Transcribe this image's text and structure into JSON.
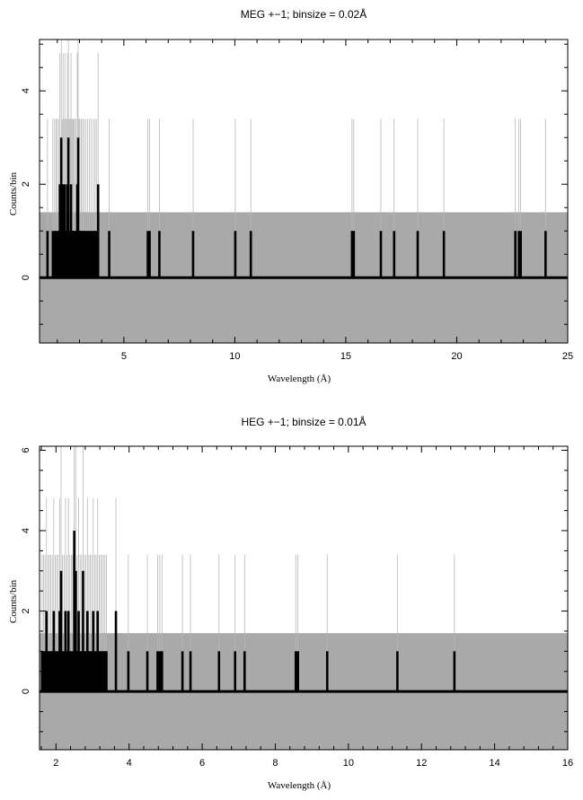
{
  "chart_data": [
    {
      "type": "bar",
      "title": "MEG +−1; binsize = 0.02Å",
      "xlabel": "Wavelength (Å)",
      "ylabel": "Counts/bin",
      "xlim": [
        1.2,
        25
      ],
      "ylim": [
        -1.4,
        5.1
      ],
      "x_ticks": [
        5,
        10,
        15,
        20,
        25
      ],
      "y_ticks": [
        0,
        2,
        4
      ],
      "error_band": [
        -1.4,
        1.4
      ],
      "series": [
        {
          "x": [
            1.56,
            1.8,
            1.88,
            1.94,
            2.0,
            2.06,
            2.12,
            2.18,
            2.22,
            2.26,
            2.3,
            2.34,
            2.38,
            2.42,
            2.46,
            2.5,
            2.54,
            2.58,
            2.62,
            2.66,
            2.7,
            2.74,
            2.78,
            2.84,
            2.9,
            2.94,
            2.98,
            3.02,
            3.08,
            3.14,
            3.2,
            3.28,
            3.36,
            3.44,
            3.52,
            3.62,
            3.7,
            3.76,
            3.84,
            4.34,
            6.08,
            6.16,
            6.6,
            8.12,
            10.02,
            10.72,
            15.28,
            15.36,
            16.58,
            17.18,
            18.24,
            19.42,
            22.64,
            22.8,
            22.88,
            24.0
          ],
          "y": [
            1,
            1,
            1,
            1,
            1,
            1,
            2,
            3,
            1,
            2,
            1,
            2,
            1,
            1,
            2,
            3,
            1,
            1,
            2,
            1,
            1,
            1,
            1,
            1,
            2,
            3,
            1,
            1,
            1,
            1,
            1,
            1,
            1,
            1,
            1,
            1,
            1,
            1,
            2,
            1,
            1,
            1,
            1,
            1,
            1,
            1,
            1,
            1,
            1,
            1,
            1,
            1,
            1,
            1,
            1,
            1
          ]
        }
      ]
    },
    {
      "type": "bar",
      "title": "HEG +−1; binsize = 0.01Å",
      "xlabel": "Wavelength (Å)",
      "ylabel": "Counts/bin",
      "xlim": [
        1.55,
        16
      ],
      "ylim": [
        -1.45,
        6.1
      ],
      "x_ticks": [
        2,
        4,
        6,
        8,
        10,
        12,
        14,
        16
      ],
      "y_ticks": [
        0,
        2,
        4,
        6
      ],
      "error_band": [
        -1.45,
        1.45
      ],
      "series": [
        {
          "x": [
            1.62,
            1.66,
            1.7,
            1.74,
            1.78,
            1.82,
            1.86,
            1.9,
            1.94,
            1.98,
            2.02,
            2.06,
            2.1,
            2.14,
            2.18,
            2.22,
            2.26,
            2.3,
            2.34,
            2.38,
            2.42,
            2.46,
            2.5,
            2.54,
            2.58,
            2.62,
            2.66,
            2.7,
            2.74,
            2.78,
            2.82,
            2.86,
            2.9,
            2.94,
            2.98,
            3.02,
            3.06,
            3.1,
            3.14,
            3.18,
            3.22,
            3.26,
            3.3,
            3.34,
            3.38,
            3.64,
            3.98,
            4.5,
            4.78,
            4.84,
            4.9,
            5.46,
            5.68,
            6.46,
            6.9,
            7.16,
            8.56,
            8.62,
            9.42,
            11.34,
            12.9
          ],
          "y": [
            1,
            1,
            1,
            2,
            1,
            1,
            1,
            1,
            2,
            1,
            1,
            1,
            2,
            3,
            1,
            1,
            2,
            1,
            2,
            1,
            1,
            1,
            4,
            3,
            1,
            2,
            1,
            1,
            3,
            1,
            1,
            2,
            1,
            1,
            1,
            2,
            1,
            1,
            2,
            1,
            1,
            1,
            1,
            1,
            1,
            2,
            1,
            1,
            1,
            1,
            1,
            1,
            1,
            1,
            1,
            1,
            1,
            1,
            1,
            1,
            1
          ]
        }
      ]
    }
  ]
}
